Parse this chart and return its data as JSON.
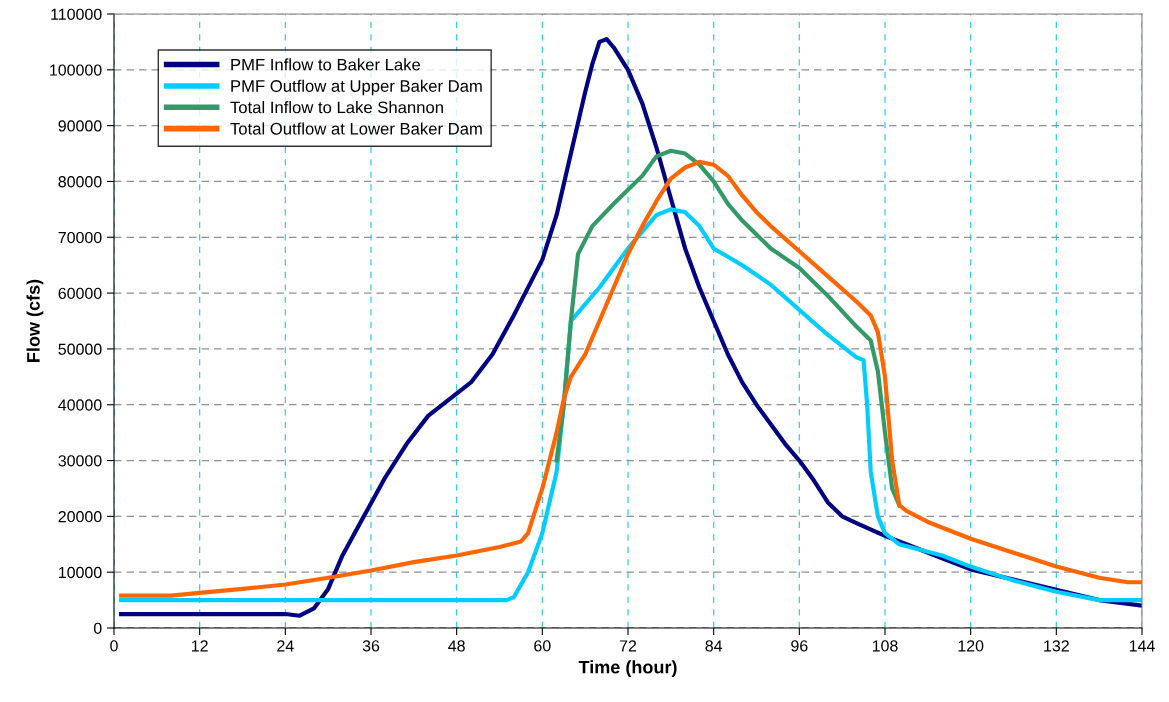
{
  "chart_data": {
    "type": "line",
    "xlabel": "Time (hour)",
    "ylabel": "Flow (cfs)",
    "xlim": [
      0,
      144
    ],
    "xticks": [
      0,
      12,
      24,
      36,
      48,
      60,
      72,
      84,
      96,
      108,
      120,
      132,
      144
    ],
    "ylim": [
      0,
      110000
    ],
    "yticks": [
      0,
      10000,
      20000,
      30000,
      40000,
      50000,
      60000,
      70000,
      80000,
      90000,
      100000,
      110000
    ],
    "grid": true,
    "legend": "top left",
    "marker": "none",
    "line_style": "solid",
    "series": [
      {
        "name": "PMF Inflow to Baker Lake",
        "color": "#000080",
        "x": [
          1,
          24,
          26,
          28,
          30,
          32,
          35,
          38,
          41,
          44,
          47,
          50,
          53,
          56,
          60,
          62,
          64,
          66,
          67,
          68,
          69,
          70,
          72,
          74,
          76,
          78,
          80,
          82,
          84,
          86,
          88,
          90,
          92,
          94,
          96,
          98,
          100,
          102,
          104,
          108,
          112,
          116,
          120,
          138,
          144
        ],
        "values": [
          2500,
          2500,
          2200,
          3500,
          7000,
          13000,
          20000,
          27000,
          33000,
          38000,
          41000,
          44000,
          49000,
          56000,
          66000,
          74000,
          85000,
          96000,
          101000,
          105000,
          105500,
          104000,
          100000,
          94000,
          86000,
          77000,
          68000,
          61000,
          55000,
          49000,
          44000,
          40000,
          36500,
          33000,
          30000,
          26500,
          22500,
          20000,
          18800,
          16500,
          14500,
          12500,
          10500,
          5000,
          4000
        ]
      },
      {
        "name": "PMF Outflow at Upper Baker Dam",
        "color": "#00ccff",
        "x": [
          1,
          55,
          56,
          58,
          60,
          62,
          63,
          64,
          65,
          68,
          72,
          74,
          76,
          78,
          80,
          82,
          84,
          88,
          92,
          96,
          100,
          104,
          105,
          105.5,
          106,
          107,
          108,
          110,
          116,
          120,
          126,
          132,
          138,
          144
        ],
        "values": [
          5000,
          5000,
          5500,
          10000,
          17000,
          28000,
          40000,
          55000,
          56500,
          61000,
          68000,
          71000,
          74000,
          75000,
          74500,
          72000,
          68000,
          65000,
          61500,
          57000,
          52500,
          48500,
          48000,
          40000,
          28000,
          20000,
          17000,
          15000,
          13000,
          11000,
          8500,
          6500,
          5000,
          5000
        ]
      },
      {
        "name": "Total Inflow to Lake Shannon",
        "color": "#339966",
        "x": [
          62,
          63,
          64,
          65,
          67,
          70,
          72,
          74,
          76,
          78,
          80,
          82,
          84,
          86,
          88,
          92,
          96,
          100,
          104,
          106,
          107,
          108,
          109,
          110
        ],
        "values": [
          30000,
          40000,
          55000,
          67000,
          72000,
          76000,
          78500,
          81000,
          84500,
          85500,
          85000,
          83000,
          80000,
          76000,
          73000,
          68000,
          64500,
          59500,
          54000,
          51500,
          46000,
          35000,
          25000,
          22000
        ]
      },
      {
        "name": "Total Outflow at Lower Baker Dam",
        "color": "#ff6600",
        "x": [
          1,
          8,
          12,
          18,
          24,
          30,
          36,
          42,
          48,
          54,
          57,
          58,
          60,
          62,
          63,
          64,
          65,
          66,
          68,
          70,
          72,
          74,
          76,
          78,
          80,
          82,
          84,
          86,
          88,
          90,
          92,
          96,
          100,
          104,
          106,
          107,
          108,
          109,
          110,
          111,
          114,
          120,
          126,
          132,
          138,
          142,
          144
        ],
        "values": [
          5800,
          5800,
          6300,
          7000,
          7800,
          9000,
          10300,
          11800,
          13000,
          14500,
          15500,
          17000,
          25000,
          35000,
          41000,
          45000,
          47000,
          49000,
          55000,
          61000,
          67000,
          72000,
          76500,
          80500,
          82500,
          83500,
          83000,
          81000,
          77500,
          74500,
          72000,
          67500,
          63000,
          58500,
          56000,
          53000,
          45000,
          30000,
          22000,
          21000,
          19000,
          16000,
          13500,
          11000,
          9000,
          8200,
          8200
        ]
      }
    ]
  }
}
